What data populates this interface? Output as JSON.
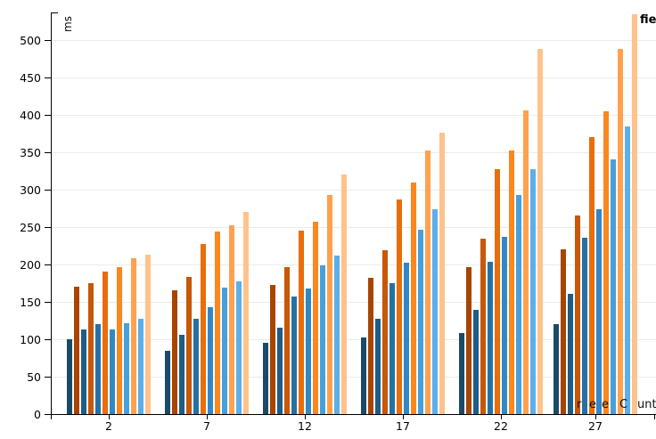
{
  "chart_data": {
    "type": "bar",
    "title": "",
    "ylabel": "ms",
    "xlabel_visible_fragments": [
      "r",
      "e",
      "e",
      "C",
      "unt"
    ],
    "legend_visible_text": "fie",
    "categories": [
      "2",
      "7",
      "12",
      "17",
      "22",
      "27"
    ],
    "series": [
      {
        "name": "blue-shade-1",
        "color": "#1b4a68",
        "values": [
          100,
          84,
          95,
          102,
          108,
          120
        ]
      },
      {
        "name": "orange-shade-1",
        "color": "#a74501",
        "values": [
          170,
          165,
          173,
          182,
          196,
          220
        ]
      },
      {
        "name": "blue-shade-2",
        "color": "#1e5d87",
        "values": [
          113,
          106,
          116,
          127,
          139,
          161
        ]
      },
      {
        "name": "orange-shade-2",
        "color": "#c85708",
        "values": [
          175,
          183,
          196,
          219,
          234,
          266
        ]
      },
      {
        "name": "blue-shade-3",
        "color": "#2571a5",
        "values": [
          120,
          128,
          157,
          175,
          204,
          236
        ]
      },
      {
        "name": "orange-shade-3",
        "color": "#e96d0b",
        "values": [
          190,
          228,
          245,
          287,
          328,
          370
        ]
      },
      {
        "name": "blue-shade-4",
        "color": "#3287c4",
        "values": [
          113,
          143,
          168,
          203,
          237,
          274
        ]
      },
      {
        "name": "orange-shade-4",
        "color": "#fb871f",
        "values": [
          196,
          244,
          257,
          310,
          353,
          405
        ]
      },
      {
        "name": "blue-shade-5",
        "color": "#47a0dc",
        "values": [
          122,
          169,
          199,
          247,
          293,
          340
        ]
      },
      {
        "name": "orange-shade-5",
        "color": "#ffa14e",
        "values": [
          208,
          252,
          293,
          352,
          406,
          488
        ]
      },
      {
        "name": "blue-shade-6",
        "color": "#5cafe9",
        "values": [
          128,
          178,
          212,
          274,
          328,
          385
        ]
      },
      {
        "name": "orange-shade-6",
        "color": "#ffc28b",
        "values": [
          213,
          270,
          320,
          376,
          488,
          535
        ]
      }
    ],
    "y_tick_labels": [
      "0",
      "50",
      "100",
      "150",
      "200",
      "250",
      "300",
      "350",
      "400",
      "450",
      "500"
    ],
    "x_tick_labels": [
      "2",
      "7",
      "12",
      "17",
      "22",
      "27"
    ],
    "ylim": [
      0,
      535
    ],
    "y_tick_step": 50,
    "grid": "horizontal-only",
    "legend_position": "top-right-clipped",
    "colors": {
      "background": "#ffffff",
      "gridline": "#ebebeb",
      "axis": "#000000",
      "text": "#000000"
    }
  }
}
